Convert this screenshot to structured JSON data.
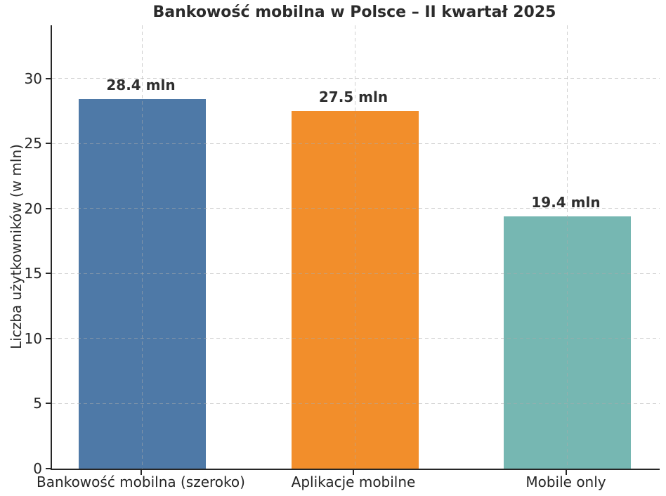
{
  "chart_data": {
    "type": "bar",
    "title": "Bankowość mobilna w Polsce – II kwartał 2025",
    "categories": [
      "Bankowość mobilna (szeroko)",
      "Aplikacje mobilne",
      "Mobile only"
    ],
    "values": [
      28.4,
      27.5,
      19.4
    ],
    "value_labels": [
      "28.4 mln",
      "27.5 mln",
      "19.4 mln"
    ],
    "xlabel": "",
    "ylabel": "Liczba użytkowników (w mln)",
    "ylim": [
      0,
      34.1
    ],
    "yticks": [
      0,
      5,
      10,
      15,
      20,
      25,
      30
    ],
    "bar_colors": [
      "#4E79A7",
      "#F28E2B",
      "#76B7B2"
    ],
    "grid": "dashed gray gridlines, horizontal at each y-tick and vertical at each bar center, drawn over bars",
    "legend_position": "none",
    "colors": {
      "background": "#ffffff",
      "spine": "#262626",
      "text": "#2b2b2b",
      "grid": "#c8c8c8"
    }
  }
}
